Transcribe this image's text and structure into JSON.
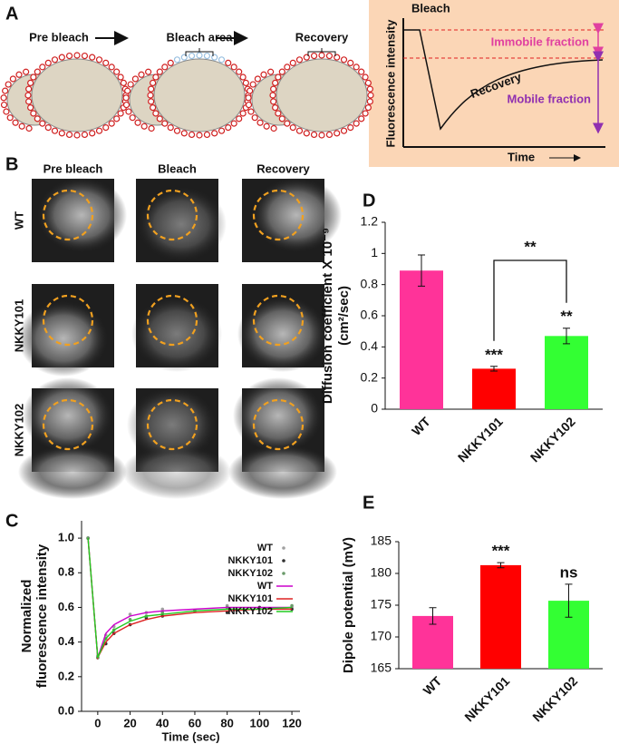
{
  "panel_labels": [
    "A",
    "B",
    "C",
    "D",
    "E"
  ],
  "panel_a": {
    "steps": [
      "Pre bleach",
      "Bleach area",
      "Recovery"
    ],
    "graph": {
      "bleach": "Bleach",
      "y_label": "Fluorescence intensity",
      "x_label": "Time",
      "immobile": "Immobile fraction",
      "recovery": "Recovery",
      "mobile": "Mobile fraction"
    }
  },
  "panel_b": {
    "columns": [
      "Pre bleach",
      "Bleach",
      "Recovery"
    ],
    "rows": [
      "WT",
      "NKKY101",
      "NKKY102"
    ]
  },
  "chart_data": [
    {
      "type": "line",
      "xlabel": "Time (sec)",
      "ylabel": [
        "Normalized",
        "fluorescence  intensity"
      ],
      "x": [
        -6,
        0,
        5,
        10,
        20,
        30,
        40,
        60,
        80,
        100,
        120
      ],
      "xlim": [
        -10,
        125
      ],
      "xticks": [
        0,
        20,
        40,
        60,
        80,
        100,
        120
      ],
      "ylim": [
        0,
        1.1
      ],
      "yticks": [
        {
          "value": 0,
          "label": "0.0"
        },
        0.2,
        0.4,
        0.6,
        0.8,
        {
          "value": 1,
          "label": "1.0"
        }
      ],
      "series": [
        {
          "name": "WT",
          "kind": "scatter",
          "color": "#a0a0a0",
          "values": [
            1.0,
            0.32,
            0.44,
            0.49,
            0.56,
            0.57,
            0.59,
            0.58,
            0.61,
            0.59,
            0.6
          ]
        },
        {
          "name": "NKKY101",
          "kind": "scatter",
          "color": "#303030",
          "values": [
            1.0,
            0.31,
            0.39,
            0.45,
            0.5,
            0.54,
            0.55,
            0.58,
            0.57,
            0.6,
            0.59
          ]
        },
        {
          "name": "NKKY102",
          "kind": "scatter",
          "color": "#6a9a6a",
          "values": [
            1.0,
            0.31,
            0.42,
            0.47,
            0.53,
            0.55,
            0.57,
            0.58,
            0.6,
            0.59,
            0.61
          ]
        },
        {
          "name": "WT",
          "kind": "line",
          "color": "#cc00cc",
          "values": [
            1.0,
            0.31,
            0.45,
            0.5,
            0.55,
            0.57,
            0.58,
            0.59,
            0.6,
            0.6,
            0.6
          ]
        },
        {
          "name": "NKKY101",
          "kind": "line",
          "color": "#dd2222",
          "values": [
            1.0,
            0.31,
            0.4,
            0.45,
            0.5,
            0.53,
            0.55,
            0.57,
            0.58,
            0.59,
            0.59
          ]
        },
        {
          "name": "NKKY102",
          "kind": "line",
          "color": "#22cc22",
          "values": [
            1.0,
            0.31,
            0.42,
            0.47,
            0.52,
            0.55,
            0.56,
            0.58,
            0.59,
            0.59,
            0.6
          ]
        }
      ]
    },
    {
      "type": "bar",
      "ylabel": [
        "Diffusion coefficient X 10⁻⁹",
        "(cm²/sec)"
      ],
      "categories": [
        "WT",
        "NKKY101",
        "NKKY102"
      ],
      "values": [
        0.89,
        0.26,
        0.47
      ],
      "errors": [
        0.1,
        0.015,
        0.05
      ],
      "colors": [
        "#ff3399",
        "#ff0000",
        "#33ff33"
      ],
      "significance": [
        null,
        "***",
        "**"
      ],
      "bracket": {
        "from": 1,
        "to": 2,
        "label": "**"
      },
      "ylim": [
        0,
        1.2
      ],
      "yticks": [
        0,
        0.2,
        0.4,
        0.6,
        0.8,
        1,
        1.2
      ]
    },
    {
      "type": "bar",
      "ylabel": [
        "Dipole potential (mV)"
      ],
      "categories": [
        "WT",
        "NKKY101",
        "NKKY102"
      ],
      "values": [
        173.3,
        181.3,
        175.7
      ],
      "errors": [
        1.3,
        0.4,
        2.6
      ],
      "colors": [
        "#ff3399",
        "#ff0000",
        "#33ff33"
      ],
      "significance": [
        null,
        "***",
        "ns"
      ],
      "ylim": [
        165,
        185
      ],
      "yticks": [
        165,
        170,
        175,
        180,
        185
      ]
    }
  ]
}
